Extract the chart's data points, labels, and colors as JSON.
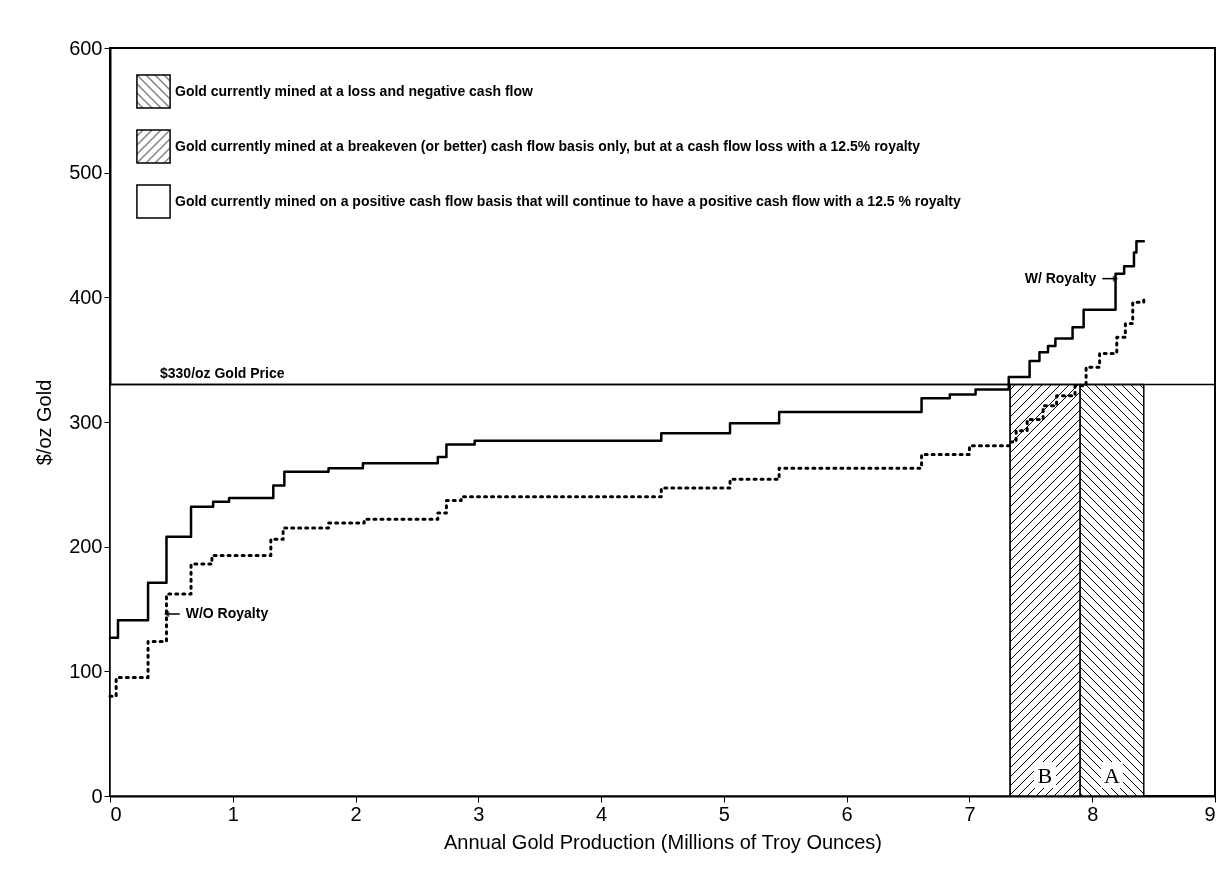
{
  "chart_data": {
    "type": "step",
    "xlabel": "Annual Gold Production  (Millions of Troy Ounces)",
    "ylabel": "$/oz Gold",
    "xlim": [
      0,
      9
    ],
    "xticks": [
      0,
      1,
      2,
      3,
      4,
      5,
      6,
      7,
      8,
      9
    ],
    "ylim": [
      0,
      600
    ],
    "yticks": [
      0,
      100,
      200,
      300,
      400,
      500,
      600
    ],
    "grid": false,
    "legend": "top left",
    "marker": "none",
    "series": [
      {
        "color": "#000000",
        "line_style": "solid",
        "x": [
          0,
          0.065,
          0.31,
          0.46,
          0.66,
          0.84,
          0.97,
          1.33,
          1.42,
          1.78,
          2.06,
          2.67,
          2.74,
          2.97,
          4.49,
          5.05,
          5.45,
          6.61,
          6.84,
          7.05,
          7.32,
          7.49,
          7.57,
          7.64,
          7.7,
          7.84,
          7.93,
          8.19,
          8.26,
          8.34,
          8.36,
          8.42
        ],
        "values": [
          127,
          141,
          171,
          208,
          232,
          236,
          239,
          249,
          260,
          263,
          267,
          272,
          282,
          285,
          291,
          299,
          308,
          319,
          322,
          326,
          336,
          349,
          356,
          361,
          367,
          376,
          390,
          419,
          425,
          436,
          445,
          445
        ]
      },
      {
        "color": "#000000",
        "line_style": "dotted",
        "x": [
          0,
          0.05,
          0.31,
          0.46,
          0.66,
          0.83,
          1.31,
          1.41,
          1.78,
          2.07,
          2.67,
          2.74,
          2.86,
          4.49,
          5.05,
          5.45,
          6.61,
          7.0,
          7.33,
          7.38,
          7.47,
          7.6,
          7.71,
          7.86,
          7.95,
          8.06,
          8.2,
          8.27,
          8.33,
          8.42
        ],
        "values": [
          80,
          95,
          124,
          162,
          186,
          193,
          206,
          215,
          219,
          222,
          227,
          237,
          240,
          247,
          254,
          263,
          274,
          281,
          284,
          293,
          302,
          313,
          321,
          329,
          344,
          355,
          368,
          379,
          396,
          400
        ]
      }
    ],
    "ref_lines": [
      {
        "axis": "y",
        "value": 330,
        "label": "$330/oz Gold Price",
        "color": "#000000"
      }
    ],
    "bands": [
      {
        "axis": "x",
        "from": 7.9,
        "to": 8.42,
        "label": "Gold currently mined at a loss and negative cash flow"
      },
      {
        "axis": "x",
        "from": 7.33,
        "to": 7.9,
        "label": "Gold currently mined at a breakeven (or better) cash flow  basis only, but at a cash flow loss with a 12.5% royalty"
      },
      {
        "axis": "x",
        "from": 0,
        "to": 7.33,
        "label": "Gold currently mined on a positive cash flow basis that will continue to have a positive cash flow with a 12.5 % royalty",
        "color": "#ffffff"
      }
    ],
    "annotations": [
      "A",
      "B",
      {
        "text": "W/ Royalty",
        "x": 8.19,
        "y": 415
      },
      {
        "text": "W/O Royalty",
        "x": 0.46,
        "y": 146
      }
    ]
  }
}
